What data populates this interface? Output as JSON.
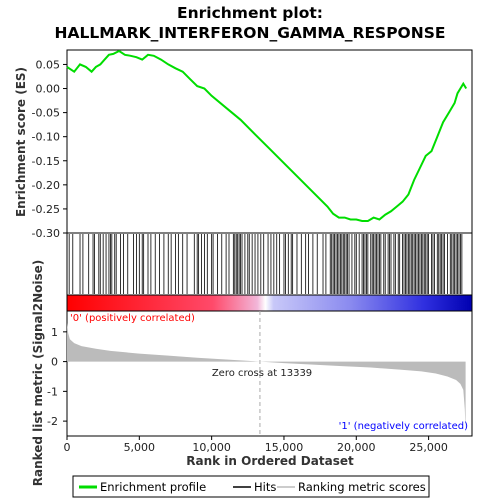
{
  "title_line1": "Enrichment plot:",
  "title_line2": "HALLMARK_INTERFERON_GAMMA_RESPONSE",
  "colors": {
    "es_line": "#00dd00",
    "hits": "#000000",
    "metric_fill": "#bbbbbb",
    "positive_label": "#ff0000",
    "negative_label": "#0000ff",
    "zero_cross_line": "#aaaaaa"
  },
  "chart_data": [
    {
      "type": "line",
      "name": "enrichment-profile",
      "ylabel": "Enrichment score (ES)",
      "xlim": [
        0,
        28000
      ],
      "ylim": [
        -0.3,
        0.08
      ],
      "yticks": [
        0.05,
        0.0,
        -0.05,
        -0.1,
        -0.15,
        -0.2,
        -0.25,
        -0.3
      ],
      "ytick_labels": [
        "0.05",
        "0.00",
        "-0.05",
        "-0.10",
        "-0.15",
        "-0.20",
        "-0.25",
        "-0.30"
      ],
      "x": [
        0,
        500,
        900,
        1300,
        1700,
        2000,
        2300,
        2600,
        2900,
        3200,
        3600,
        4000,
        4400,
        4800,
        5200,
        5600,
        6000,
        6500,
        7000,
        7500,
        8000,
        8500,
        9000,
        9500,
        10000,
        11000,
        12000,
        13000,
        14000,
        15000,
        16000,
        17000,
        18000,
        18400,
        18800,
        19200,
        19600,
        20000,
        20400,
        20800,
        21200,
        21600,
        22000,
        22400,
        22800,
        23200,
        23600,
        24000,
        24400,
        24800,
        25200,
        25600,
        26000,
        26400,
        26800,
        27000,
        27200,
        27400,
        27600
      ],
      "y": [
        0.045,
        0.035,
        0.05,
        0.045,
        0.035,
        0.045,
        0.05,
        0.06,
        0.07,
        0.072,
        0.078,
        0.07,
        0.068,
        0.065,
        0.06,
        0.07,
        0.068,
        0.06,
        0.05,
        0.042,
        0.035,
        0.02,
        0.005,
        0.0,
        -0.015,
        -0.04,
        -0.065,
        -0.095,
        -0.125,
        -0.155,
        -0.185,
        -0.215,
        -0.245,
        -0.26,
        -0.268,
        -0.268,
        -0.272,
        -0.272,
        -0.275,
        -0.275,
        -0.268,
        -0.272,
        -0.262,
        -0.255,
        -0.245,
        -0.235,
        -0.22,
        -0.19,
        -0.165,
        -0.14,
        -0.13,
        -0.1,
        -0.07,
        -0.05,
        -0.03,
        -0.01,
        0.0,
        0.01,
        0.0
      ]
    },
    {
      "type": "scatter",
      "name": "hits",
      "x": [
        150,
        400,
        900,
        1100,
        1500,
        1800,
        1900,
        2200,
        2300,
        2500,
        2700,
        2900,
        3000,
        3100,
        3300,
        3400,
        3700,
        3900,
        4200,
        4600,
        4800,
        5000,
        5200,
        5300,
        5600,
        5800,
        6100,
        6400,
        6700,
        7000,
        7200,
        7500,
        7700,
        8000,
        8300,
        8800,
        9000,
        9100,
        9300,
        9500,
        9700,
        10000,
        10100,
        10400,
        10700,
        11000,
        11200,
        11500,
        11600,
        11700,
        11800,
        11900,
        12000,
        12100,
        12300,
        12500,
        12600,
        12800,
        13000,
        13200,
        13400,
        13600,
        13900,
        14100,
        14300,
        14500,
        14700,
        15000,
        15100,
        15300,
        15500,
        15600,
        15900,
        16200,
        16500,
        16700,
        17000,
        17300,
        17700,
        17900,
        18200,
        18300,
        18400,
        18500,
        18600,
        18700,
        18800,
        18900,
        19000,
        19100,
        19200,
        19300,
        19400,
        19500,
        19700,
        19900,
        20000,
        20200,
        20400,
        20500,
        20600,
        20700,
        20800,
        21000,
        21100,
        21200,
        21300,
        21400,
        21500,
        21600,
        21700,
        21900,
        22000,
        22200,
        22300,
        22400,
        22600,
        22700,
        22900,
        23000,
        23200,
        23300,
        23400,
        23500,
        23600,
        23700,
        23800,
        23900,
        24000,
        24100,
        24200,
        24300,
        24400,
        24500,
        24600,
        24700,
        24800,
        24900,
        25000,
        25200,
        25300,
        25400,
        25600,
        25700,
        25800,
        25900,
        26000,
        26100,
        26300,
        26500,
        26600,
        26700,
        26800,
        26900,
        27000,
        27100,
        27200,
        27300
      ]
    },
    {
      "type": "area",
      "name": "ranked-list-metric",
      "ylabel": "Ranked list metric (Signal2Noise)",
      "xlabel": "Rank in Ordered Dataset",
      "xlim": [
        0,
        28000
      ],
      "ylim": [
        -2.5,
        1.7
      ],
      "xticks": [
        0,
        5000,
        10000,
        15000,
        20000,
        25000
      ],
      "xtick_labels": [
        "0",
        "5,000",
        "10,000",
        "15,000",
        "20,000",
        "25,000"
      ],
      "yticks": [
        1,
        0,
        -1,
        -2
      ],
      "ytick_labels": [
        "1",
        "0",
        "-1",
        "-2"
      ],
      "x": [
        0,
        80,
        200,
        500,
        1000,
        2000,
        3000,
        5000,
        7000,
        9000,
        11000,
        13339,
        15000,
        17000,
        19000,
        21000,
        23000,
        24500,
        25500,
        26300,
        26900,
        27200,
        27400,
        27500,
        27560
      ],
      "y": [
        1.3,
        0.95,
        0.75,
        0.62,
        0.52,
        0.43,
        0.36,
        0.27,
        0.2,
        0.13,
        0.07,
        0.0,
        -0.05,
        -0.1,
        -0.15,
        -0.2,
        -0.27,
        -0.33,
        -0.4,
        -0.5,
        -0.62,
        -0.75,
        -0.95,
        -1.6,
        -2.35
      ]
    }
  ],
  "positive_label": "'0' (positively correlated)",
  "negative_label": "'1' (negatively correlated)",
  "zero_cross_label": "Zero cross at 13339",
  "zero_cross_rank": 13339,
  "legend": {
    "items": [
      {
        "label": "Enrichment profile",
        "color": "#00dd00"
      },
      {
        "label": "Hits",
        "color": "#000000"
      },
      {
        "label": "Ranking metric scores",
        "color": "#bbbbbb"
      }
    ]
  }
}
